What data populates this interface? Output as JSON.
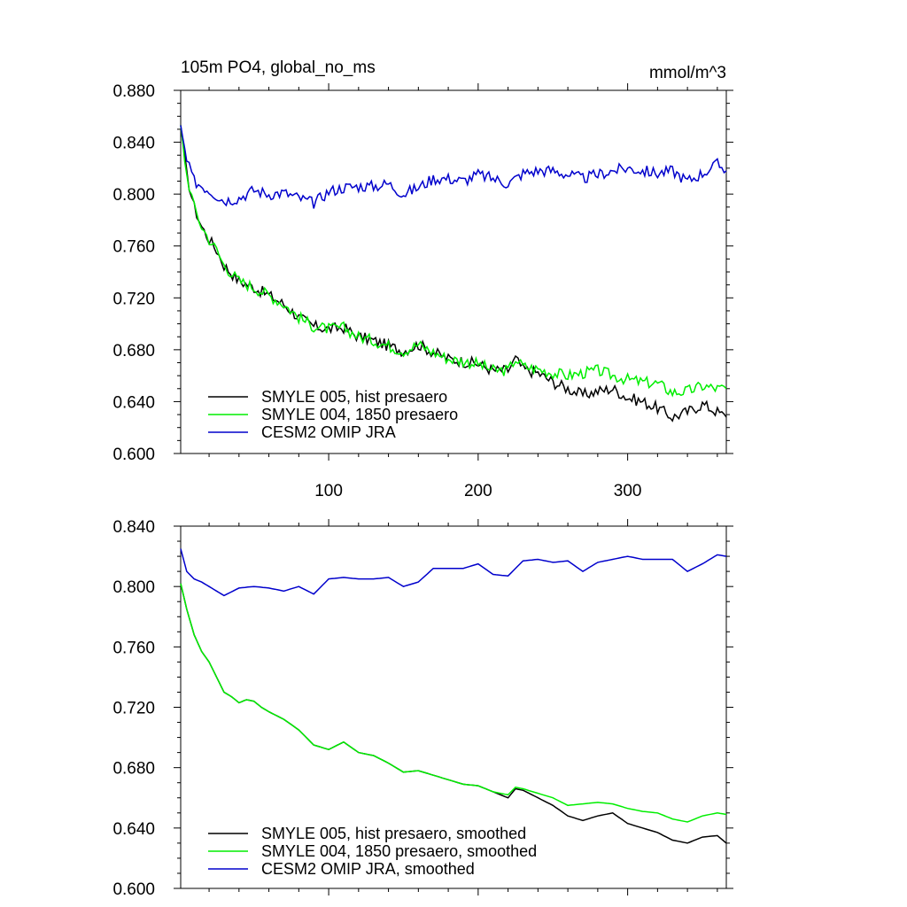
{
  "chart_data": [
    {
      "type": "line",
      "title": "105m PO4, global_no_ms",
      "units": "mmol/m^3",
      "xlim": [
        1,
        366
      ],
      "ylim": [
        0.6,
        0.88
      ],
      "yticks": [
        "0.600",
        "0.640",
        "0.680",
        "0.720",
        "0.760",
        "0.800",
        "0.840",
        "0.880"
      ],
      "xticks": [
        "100",
        "200",
        "300"
      ],
      "legend_position": "bottom-left",
      "series": [
        {
          "name": "SMYLE 005, hist presaero",
          "color": "#000000",
          "x": [
            1,
            5,
            10,
            15,
            20,
            25,
            30,
            40,
            50,
            60,
            70,
            80,
            90,
            100,
            110,
            120,
            130,
            140,
            150,
            160,
            170,
            180,
            190,
            200,
            210,
            220,
            225,
            230,
            240,
            250,
            260,
            270,
            280,
            290,
            300,
            310,
            320,
            330,
            340,
            350,
            360,
            366
          ],
          "values": [
            0.853,
            0.815,
            0.79,
            0.775,
            0.765,
            0.757,
            0.745,
            0.733,
            0.728,
            0.722,
            0.715,
            0.705,
            0.698,
            0.696,
            0.697,
            0.69,
            0.687,
            0.683,
            0.679,
            0.684,
            0.678,
            0.673,
            0.671,
            0.669,
            0.664,
            0.664,
            0.673,
            0.665,
            0.662,
            0.655,
            0.65,
            0.645,
            0.648,
            0.65,
            0.643,
            0.64,
            0.635,
            0.628,
            0.632,
            0.638,
            0.632,
            0.628
          ]
        },
        {
          "name": "SMYLE 004, 1850 presaero",
          "color": "#00ee00",
          "x": [
            1,
            5,
            10,
            15,
            20,
            25,
            30,
            40,
            50,
            60,
            70,
            80,
            90,
            100,
            110,
            120,
            130,
            140,
            150,
            160,
            170,
            180,
            190,
            200,
            210,
            220,
            225,
            230,
            240,
            250,
            260,
            270,
            280,
            290,
            300,
            310,
            320,
            330,
            340,
            350,
            360,
            366
          ],
          "values": [
            0.853,
            0.815,
            0.79,
            0.775,
            0.765,
            0.757,
            0.745,
            0.733,
            0.728,
            0.722,
            0.715,
            0.705,
            0.698,
            0.696,
            0.697,
            0.69,
            0.687,
            0.683,
            0.679,
            0.684,
            0.678,
            0.673,
            0.671,
            0.669,
            0.664,
            0.664,
            0.673,
            0.667,
            0.665,
            0.662,
            0.66,
            0.662,
            0.664,
            0.66,
            0.657,
            0.655,
            0.654,
            0.647,
            0.648,
            0.652,
            0.65,
            0.65
          ]
        },
        {
          "name": "CESM2 OMIP JRA",
          "color": "#0000cc",
          "x": [
            1,
            5,
            10,
            20,
            30,
            40,
            50,
            60,
            70,
            80,
            90,
            100,
            110,
            120,
            130,
            140,
            150,
            160,
            170,
            180,
            190,
            200,
            210,
            220,
            230,
            240,
            250,
            260,
            270,
            280,
            290,
            300,
            310,
            320,
            330,
            340,
            350,
            360,
            366
          ],
          "values": [
            0.853,
            0.825,
            0.81,
            0.803,
            0.795,
            0.797,
            0.803,
            0.8,
            0.801,
            0.797,
            0.793,
            0.802,
            0.805,
            0.806,
            0.806,
            0.808,
            0.8,
            0.805,
            0.812,
            0.812,
            0.81,
            0.815,
            0.812,
            0.808,
            0.816,
            0.818,
            0.818,
            0.815,
            0.812,
            0.815,
            0.818,
            0.82,
            0.818,
            0.816,
            0.818,
            0.81,
            0.816,
            0.823,
            0.818
          ]
        }
      ]
    },
    {
      "type": "line",
      "title": "",
      "xlim": [
        1,
        366
      ],
      "ylim": [
        0.6,
        0.84
      ],
      "yticks": [
        "0.600",
        "0.640",
        "0.680",
        "0.720",
        "0.760",
        "0.800",
        "0.840"
      ],
      "xticks": [],
      "legend_position": "bottom-left",
      "series": [
        {
          "name": "SMYLE 005, hist presaero, smoothed",
          "color": "#000000",
          "x": [
            1,
            5,
            10,
            15,
            20,
            25,
            30,
            35,
            40,
            45,
            50,
            55,
            60,
            70,
            80,
            90,
            100,
            110,
            120,
            130,
            140,
            150,
            160,
            170,
            180,
            190,
            200,
            210,
            220,
            225,
            230,
            240,
            250,
            260,
            270,
            280,
            290,
            300,
            310,
            320,
            330,
            340,
            350,
            360,
            366
          ],
          "values": [
            0.802,
            0.785,
            0.768,
            0.757,
            0.75,
            0.74,
            0.73,
            0.727,
            0.723,
            0.725,
            0.724,
            0.72,
            0.717,
            0.712,
            0.705,
            0.695,
            0.692,
            0.697,
            0.69,
            0.688,
            0.683,
            0.677,
            0.678,
            0.675,
            0.672,
            0.669,
            0.668,
            0.664,
            0.66,
            0.666,
            0.665,
            0.66,
            0.655,
            0.648,
            0.645,
            0.648,
            0.65,
            0.643,
            0.64,
            0.637,
            0.632,
            0.63,
            0.634,
            0.635,
            0.63
          ]
        },
        {
          "name": "SMYLE 004, 1850 presaero, smoothed",
          "color": "#00ee00",
          "x": [
            1,
            5,
            10,
            15,
            20,
            25,
            30,
            35,
            40,
            45,
            50,
            55,
            60,
            70,
            80,
            90,
            100,
            110,
            120,
            130,
            140,
            150,
            160,
            170,
            180,
            190,
            200,
            210,
            220,
            225,
            230,
            240,
            250,
            260,
            270,
            280,
            290,
            300,
            310,
            320,
            330,
            340,
            350,
            360,
            366
          ],
          "values": [
            0.802,
            0.785,
            0.768,
            0.757,
            0.75,
            0.74,
            0.73,
            0.727,
            0.723,
            0.725,
            0.724,
            0.72,
            0.717,
            0.712,
            0.705,
            0.695,
            0.692,
            0.697,
            0.69,
            0.688,
            0.683,
            0.677,
            0.678,
            0.675,
            0.672,
            0.669,
            0.668,
            0.664,
            0.662,
            0.667,
            0.666,
            0.663,
            0.66,
            0.655,
            0.656,
            0.657,
            0.656,
            0.653,
            0.651,
            0.65,
            0.646,
            0.644,
            0.648,
            0.65,
            0.649
          ]
        },
        {
          "name": "CESM2 OMIP JRA, smoothed",
          "color": "#0000cc",
          "x": [
            1,
            5,
            10,
            15,
            20,
            25,
            30,
            40,
            50,
            60,
            70,
            80,
            90,
            100,
            110,
            120,
            130,
            140,
            150,
            160,
            170,
            180,
            190,
            200,
            210,
            220,
            230,
            240,
            250,
            260,
            270,
            280,
            290,
            300,
            310,
            320,
            330,
            340,
            350,
            360,
            366
          ],
          "values": [
            0.825,
            0.81,
            0.805,
            0.803,
            0.8,
            0.797,
            0.794,
            0.799,
            0.8,
            0.799,
            0.797,
            0.8,
            0.795,
            0.805,
            0.806,
            0.805,
            0.805,
            0.806,
            0.8,
            0.803,
            0.812,
            0.812,
            0.812,
            0.815,
            0.808,
            0.807,
            0.817,
            0.818,
            0.816,
            0.817,
            0.81,
            0.816,
            0.818,
            0.82,
            0.818,
            0.818,
            0.818,
            0.81,
            0.815,
            0.821,
            0.82
          ]
        }
      ]
    }
  ]
}
